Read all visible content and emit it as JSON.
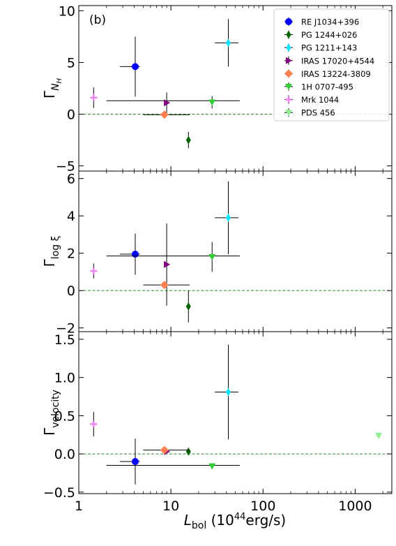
{
  "figure": {
    "panel_tag": "(b)",
    "xlabel_main": "L",
    "xlabel_sub": "bol",
    "xlabel_units": " (10",
    "xlabel_exp": "44",
    "xlabel_tail": "erg/s)"
  },
  "legend": {
    "placement": "upper-right of top panel",
    "entries": [
      {
        "label": "RE J1034+396",
        "color": "#0000ff",
        "marker": "circle"
      },
      {
        "label": "PG 1244+026",
        "color": "#006400",
        "marker": "diamond-thin"
      },
      {
        "label": "PG 1211+143",
        "color": "#00e5ff",
        "marker": "diamond-thin"
      },
      {
        "label": "IRAS 17020+4544",
        "color": "#800080",
        "marker": "triangle-right"
      },
      {
        "label": "IRAS 13224-3809",
        "color": "#ff7f50",
        "marker": "diamond"
      },
      {
        "label": "1H 0707-495",
        "color": "#32cd32",
        "marker": "triangle-down"
      },
      {
        "label": "Mrk 1044",
        "color": "#ee82ee",
        "marker": "plus"
      },
      {
        "label": "PDS 456",
        "color": "#90ee90",
        "marker": "triangle-down"
      }
    ]
  },
  "chart_data": [
    {
      "type": "scatter",
      "xscale": "log",
      "xlim": [
        1,
        2500
      ],
      "ylim": [
        -5.5,
        10.5
      ],
      "ylabel_main": "Γ",
      "ylabel_sub": "N",
      "ylabel_subsub": "H",
      "x_ticks": [
        {
          "value": 1,
          "label": ""
        },
        {
          "value": 10,
          "label": ""
        },
        {
          "value": 100,
          "label": ""
        },
        {
          "value": 1000,
          "label": ""
        }
      ],
      "y_ticks": [
        {
          "value": -5,
          "label": "−5"
        },
        {
          "value": 0,
          "label": "0"
        },
        {
          "value": 5,
          "label": "5"
        },
        {
          "value": 10,
          "label": "10"
        }
      ],
      "reference_line": 0,
      "points": [
        {
          "series": "RE J1034+396",
          "x": 4.1,
          "y": 4.6,
          "xerr": [
            1.3,
            0.5
          ],
          "yerr": [
            2.9,
            2.9
          ]
        },
        {
          "series": "RE J1034+396",
          "x": 4.1,
          "y": 1.3,
          "xerr": [
            2.1,
            51.9
          ],
          "yerr": [
            0,
            0
          ],
          "marker_hidden": true
        },
        {
          "series": "PG 1244+026",
          "x": 15.5,
          "y": -2.5,
          "xerr": [
            0,
            0
          ],
          "yerr": [
            0.8,
            0.8
          ]
        },
        {
          "series": "PG 1211+143",
          "x": 42,
          "y": 6.9,
          "xerr": [
            12,
            12
          ],
          "yerr": [
            2.3,
            2.3
          ]
        },
        {
          "series": "IRAS 17020+4544",
          "x": 9,
          "y": 1.1,
          "xerr": [
            0,
            0
          ],
          "yerr": [
            1.0,
            1.0
          ]
        },
        {
          "series": "IRAS 13224-3809",
          "x": 8.5,
          "y": -0.05,
          "xerr": [
            3.5,
            7.5
          ],
          "yerr": [
            0,
            0
          ]
        },
        {
          "series": "1H 0707-495",
          "x": 28,
          "y": 1.15,
          "xerr": [
            0,
            0
          ],
          "yerr": [
            0.6,
            0.6
          ]
        },
        {
          "series": "Mrk 1044",
          "x": 1.45,
          "y": 1.6,
          "xerr": [
            0,
            0
          ],
          "yerr": [
            1.0,
            1.0
          ]
        }
      ]
    },
    {
      "type": "scatter",
      "xscale": "log",
      "xlim": [
        1,
        2500
      ],
      "ylim": [
        -2.2,
        6.4
      ],
      "ylabel_main": "Γ",
      "ylabel_sub": "log ξ",
      "x_ticks": [
        {
          "value": 1,
          "label": ""
        },
        {
          "value": 10,
          "label": ""
        },
        {
          "value": 100,
          "label": ""
        },
        {
          "value": 1000,
          "label": ""
        }
      ],
      "y_ticks": [
        {
          "value": -2,
          "label": "−2"
        },
        {
          "value": 0,
          "label": "0"
        },
        {
          "value": 2,
          "label": "2"
        },
        {
          "value": 4,
          "label": "4"
        },
        {
          "value": 6,
          "label": "6"
        }
      ],
      "reference_line": 0,
      "points": [
        {
          "series": "RE J1034+396",
          "x": 4.1,
          "y": 1.95,
          "xerr": [
            1.3,
            0.5
          ],
          "yerr": [
            1.1,
            1.1
          ]
        },
        {
          "series": "RE J1034+396",
          "x": 4.1,
          "y": 1.85,
          "xerr": [
            2.1,
            51.9
          ],
          "yerr": [
            0,
            0
          ],
          "marker_hidden": true
        },
        {
          "series": "PG 1244+026",
          "x": 15.5,
          "y": -0.85,
          "xerr": [
            0,
            0
          ],
          "yerr": [
            0.85,
            0.85
          ]
        },
        {
          "series": "PG 1211+143",
          "x": 42,
          "y": 3.9,
          "xerr": [
            12,
            12
          ],
          "yerr": [
            1.95,
            1.95
          ]
        },
        {
          "series": "IRAS 17020+4544",
          "x": 9,
          "y": 1.4,
          "xerr": [
            0,
            0
          ],
          "yerr": [
            2.2,
            2.2
          ]
        },
        {
          "series": "IRAS 13224-3809",
          "x": 8.5,
          "y": 0.3,
          "xerr": [
            3.5,
            7.5
          ],
          "yerr": [
            0,
            0
          ]
        },
        {
          "series": "1H 0707-495",
          "x": 28,
          "y": 1.8,
          "xerr": [
            0,
            0
          ],
          "yerr": [
            0.8,
            0.8
          ]
        },
        {
          "series": "Mrk 1044",
          "x": 1.45,
          "y": 1.05,
          "xerr": [
            0,
            0
          ],
          "yerr": [
            0.4,
            0.4
          ]
        }
      ]
    },
    {
      "type": "scatter",
      "xscale": "log",
      "xlim": [
        1,
        2500
      ],
      "ylim": [
        -0.52,
        1.6
      ],
      "ylabel_main": "Γ",
      "ylabel_sub": "velocity",
      "x_ticks": [
        {
          "value": 1,
          "label": "1"
        },
        {
          "value": 10,
          "label": "10"
        },
        {
          "value": 100,
          "label": "100"
        },
        {
          "value": 1000,
          "label": "1000"
        }
      ],
      "y_ticks": [
        {
          "value": -0.5,
          "label": "−0.5"
        },
        {
          "value": 0,
          "label": "0.0"
        },
        {
          "value": 0.5,
          "label": "0.5"
        },
        {
          "value": 1.0,
          "label": "1.0"
        },
        {
          "value": 1.5,
          "label": "1.5"
        }
      ],
      "reference_line": 0,
      "points": [
        {
          "series": "RE J1034+396",
          "x": 4.1,
          "y": -0.1,
          "xerr": [
            1.3,
            0.5
          ],
          "yerr": [
            0.3,
            0.3
          ]
        },
        {
          "series": "RE J1034+396",
          "x": 4.1,
          "y": -0.15,
          "xerr": [
            2.1,
            51.9
          ],
          "yerr": [
            0,
            0
          ],
          "marker_hidden": true
        },
        {
          "series": "PG 1244+026",
          "x": 15.5,
          "y": 0.03,
          "xerr": [
            0,
            0
          ],
          "yerr": [
            0.03,
            0.03
          ]
        },
        {
          "series": "PG 1211+143",
          "x": 42,
          "y": 0.81,
          "xerr": [
            12,
            12
          ],
          "yerr": [
            0.62,
            0.62
          ]
        },
        {
          "series": "IRAS 17020+4544",
          "x": 9,
          "y": 0.03,
          "xerr": [
            0,
            0
          ],
          "yerr": [
            0,
            0
          ]
        },
        {
          "series": "IRAS 13224-3809",
          "x": 8.5,
          "y": 0.05,
          "xerr": [
            3.5,
            7.5
          ],
          "yerr": [
            0,
            0
          ]
        },
        {
          "series": "1H 0707-495",
          "x": 28,
          "y": -0.16,
          "xerr": [
            0,
            0
          ],
          "yerr": [
            0.02,
            0.02
          ]
        },
        {
          "series": "Mrk 1044",
          "x": 1.45,
          "y": 0.39,
          "xerr": [
            0,
            0
          ],
          "yerr": [
            0.16,
            0.16
          ]
        },
        {
          "series": "PDS 456",
          "x": 1800,
          "y": 0.24,
          "xerr": [
            0,
            0
          ],
          "yerr": [
            0,
            0
          ]
        }
      ]
    }
  ]
}
